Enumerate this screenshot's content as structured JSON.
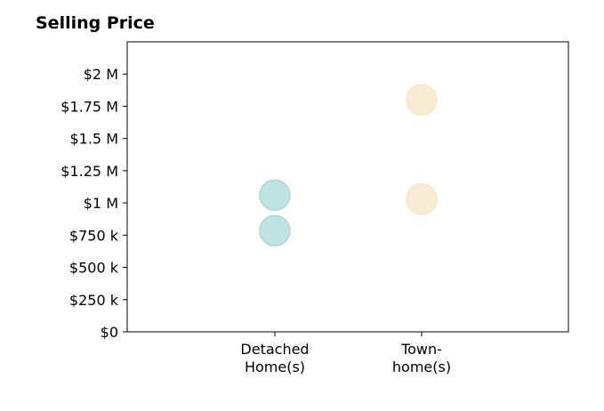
{
  "chart_data": {
    "type": "scatter",
    "title": "Selling Price",
    "xlabel": "",
    "ylabel": "",
    "categories": [
      [
        "Detached",
        "Home(s)"
      ],
      [
        "Town-",
        "home(s)"
      ]
    ],
    "ylim": [
      0,
      2250000
    ],
    "yticks": [
      0,
      250000,
      500000,
      750000,
      1000000,
      1250000,
      1500000,
      1750000,
      2000000
    ],
    "ytick_labels": [
      "$0",
      "$250 k",
      "$500 k",
      "$750 k",
      "$1 M",
      "$1.25 M",
      "$1.5 M",
      "$1.75 M",
      "$2 M"
    ],
    "points": [
      {
        "category": 0,
        "value": 785000,
        "color": "#aad9d6"
      },
      {
        "category": 0,
        "value": 1060000,
        "color": "#aad9d6"
      },
      {
        "category": 1,
        "value": 1030000,
        "color": "#f6e6c4"
      },
      {
        "category": 1,
        "value": 1800000,
        "color": "#f6e6c4"
      }
    ],
    "grid": false,
    "legend": false
  }
}
